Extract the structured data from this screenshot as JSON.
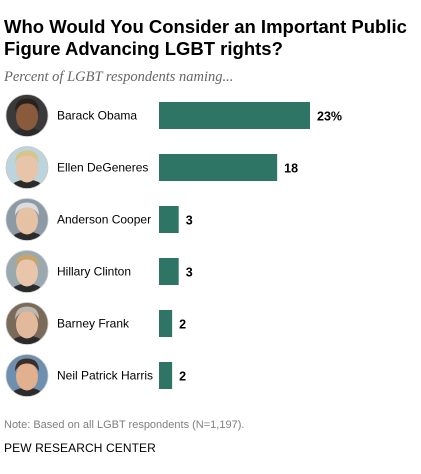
{
  "title": "Who Would You Consider an Important Public Figure Advancing LGBT rights?",
  "subtitle": "Percent of LGBT respondents naming...",
  "note": "Note: Based on all LGBT respondents (N=1,197).",
  "source": "PEW RESEARCH CENTER",
  "colors": {
    "bar": "#2e7565",
    "avatar_bg": "#d9d2c6"
  },
  "chart_data": {
    "type": "bar",
    "orientation": "horizontal",
    "categories": [
      "Barack Obama",
      "Ellen DeGeneres",
      "Anderson Cooper",
      "Hillary Clinton",
      "Barney Frank",
      "Neil Patrick Harris"
    ],
    "values": [
      23,
      18,
      3,
      3,
      2,
      2
    ],
    "value_labels": [
      "23%",
      "18",
      "3",
      "3",
      "2",
      "2"
    ],
    "xlim": [
      0,
      23
    ],
    "grid": false,
    "legend": "none"
  }
}
